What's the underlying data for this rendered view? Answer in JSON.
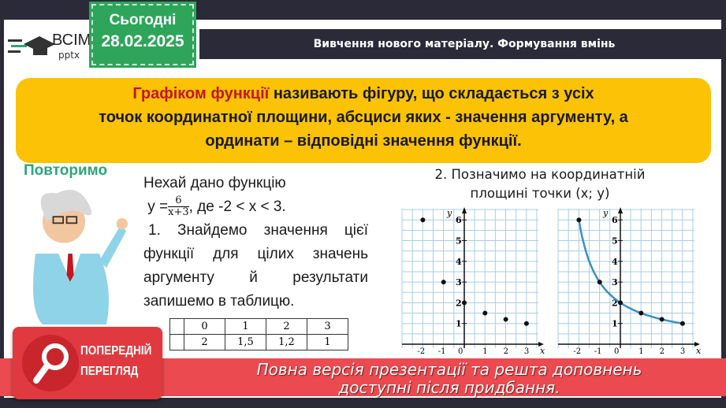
{
  "logo": {
    "name": "ВСІМ",
    "sub": "pptx"
  },
  "date": {
    "label": "Сьогодні",
    "value": "28.02.2025"
  },
  "header": {
    "title": "Вивчення нового матеріалу. Формування вмінь"
  },
  "definition": {
    "highlight": "Графіком функції",
    "line1_rest": " називають фігуру, що складається з усіх",
    "line2": "точок координатної площини, абсциси яких - значення аргументу, а",
    "line3": "ординати – відповідні значення функції."
  },
  "repeat_label": "Повторимо",
  "task": {
    "intro": "Нехай дано функцію",
    "y_prefix": "y =",
    "frac_num": "6",
    "frac_den": "x+3",
    "condition": ", де -2 < x < 3.",
    "step1_l1": "1. Знайдемо значення цієї",
    "step1_l2": "функції для цілих значень",
    "step1_l3": "аргументу й результати",
    "step1_l4": "запишемо в таблицю."
  },
  "table": {
    "x": [
      "0",
      "1",
      "2",
      "3"
    ],
    "y": [
      "2",
      "1,5",
      "1,2",
      "1"
    ]
  },
  "step2": {
    "l1": "2. Позначимо на координатній",
    "l2": "площині точки (x; y)"
  },
  "chart_data": [
    {
      "type": "scatter",
      "x": [
        -2,
        -1,
        0,
        1,
        2,
        3
      ],
      "y": [
        6,
        3,
        2,
        1.5,
        1.2,
        1
      ],
      "xlabel": "x",
      "ylabel": "y",
      "xticks": [
        "-2",
        "-1",
        "0",
        "1",
        "2",
        "3"
      ],
      "yticks": [
        "1",
        "2",
        "3",
        "4",
        "5",
        "6"
      ],
      "grid": true,
      "point_color": "#111111"
    },
    {
      "type": "line",
      "x": [
        -2,
        -1,
        0,
        1,
        2,
        3
      ],
      "y": [
        6,
        3,
        2,
        1.5,
        1.2,
        1
      ],
      "curve": "y=6/(x+3)",
      "xlabel": "x",
      "ylabel": "y",
      "xticks": [
        "-2",
        "-1",
        "0",
        "1",
        "2",
        "3"
      ],
      "yticks": [
        "1",
        "2",
        "3",
        "4",
        "5",
        "6"
      ],
      "grid": true,
      "line_color": "#3a8fc4",
      "point_color": "#111111"
    }
  ],
  "preview": {
    "l1": "ПОПЕРЕДНІЙ",
    "l2": "ПЕРЕГЛЯД"
  },
  "banner": {
    "l1": "Повна версія презентації та решта доповнень",
    "l2": "доступні після придбання."
  },
  "colors": {
    "accent_green": "#2ea55a",
    "definition_bg": "#fbc206",
    "highlight_red": "#c4161c",
    "banner_red": "#ea4a50",
    "header_dark": "#2b2a38"
  }
}
